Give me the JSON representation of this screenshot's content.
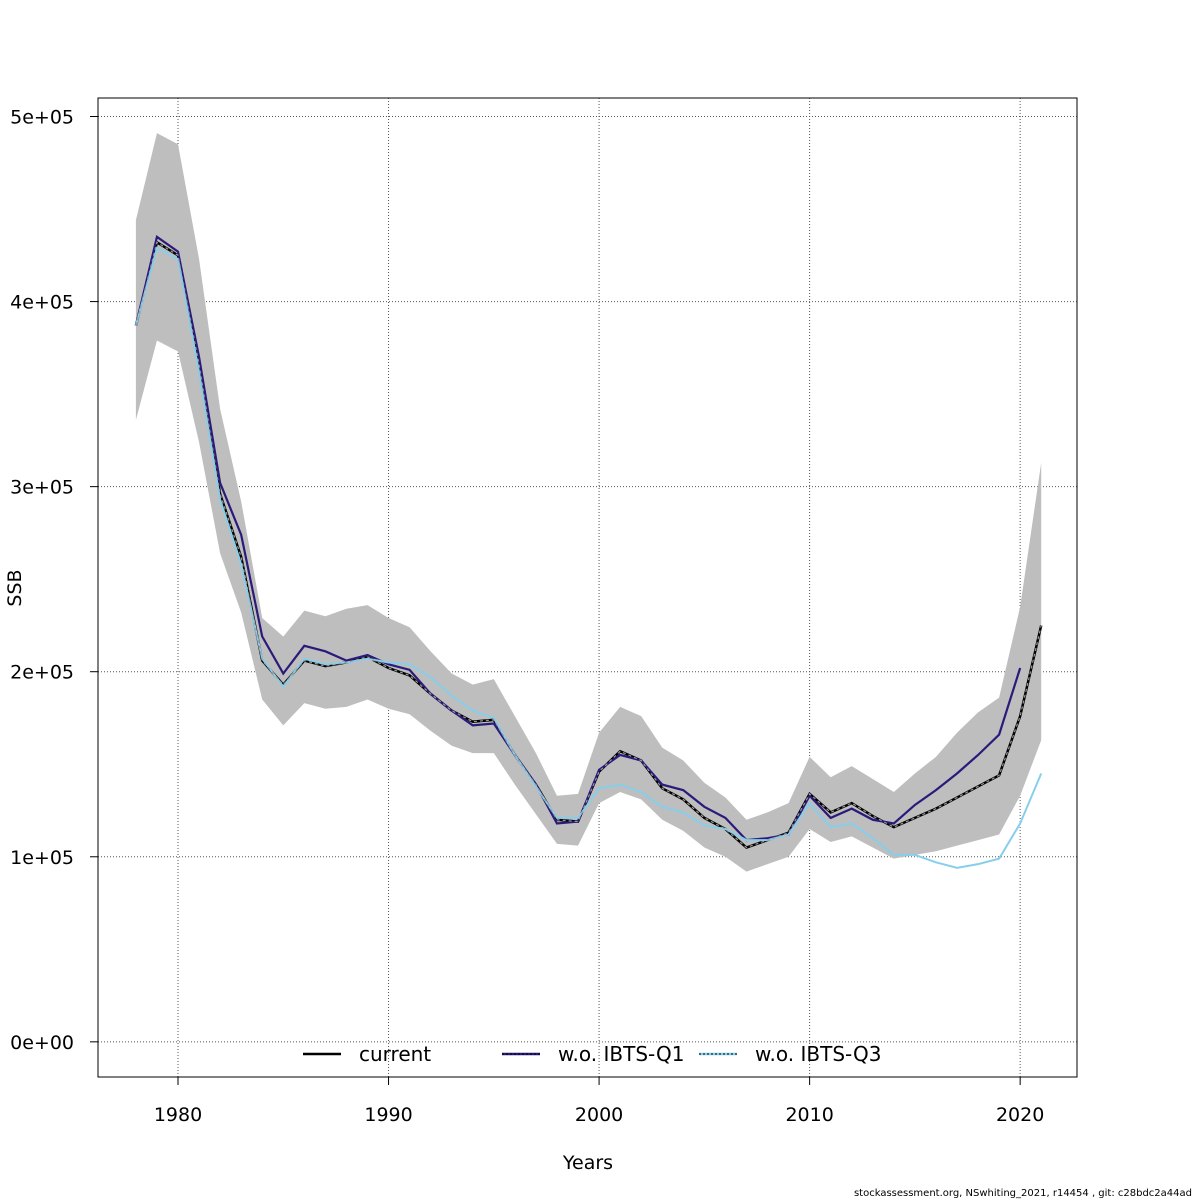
{
  "chart_data": {
    "type": "line",
    "title": "",
    "xlabel": "Years",
    "ylabel": "SSB",
    "xlim": [
      1976.2,
      2022.7
    ],
    "ylim": [
      -19000,
      510000
    ],
    "x_ticks": [
      1980,
      1990,
      2000,
      2010,
      2020
    ],
    "x_tick_labels": [
      "1980",
      "1990",
      "2000",
      "2010",
      "2020"
    ],
    "y_ticks": [
      0,
      100000,
      200000,
      300000,
      400000,
      500000
    ],
    "y_tick_labels": [
      "0e+00",
      "1e+05",
      "2e+05",
      "3e+05",
      "4e+05",
      "5e+05"
    ],
    "grid": true,
    "legend_position": "bottom",
    "confidence_band": {
      "name": "current 95% CI",
      "color": "#bebebe",
      "x": [
        1978,
        1979,
        1980,
        1981,
        1982,
        1983,
        1984,
        1985,
        1986,
        1987,
        1988,
        1989,
        1990,
        1991,
        1992,
        1993,
        1994,
        1995,
        1996,
        1997,
        1998,
        1999,
        2000,
        2001,
        2002,
        2003,
        2004,
        2005,
        2006,
        2007,
        2008,
        2009,
        2010,
        2011,
        2012,
        2013,
        2014,
        2015,
        2016,
        2017,
        2018,
        2019,
        2020,
        2021
      ],
      "lower": [
        336000,
        379000,
        373000,
        324000,
        264000,
        232000,
        185000,
        171000,
        183000,
        180000,
        181000,
        185000,
        180000,
        177000,
        168000,
        160000,
        156000,
        156000,
        139000,
        123000,
        107000,
        106000,
        129000,
        135000,
        131000,
        120000,
        114000,
        105000,
        100000,
        92000,
        96000,
        100000,
        115000,
        108000,
        111000,
        105000,
        99000,
        101000,
        103000,
        106000,
        109000,
        112000,
        133000,
        163000
      ],
      "upper": [
        444000,
        491000,
        485000,
        423000,
        342000,
        292000,
        229000,
        219000,
        233000,
        230000,
        234000,
        236000,
        229000,
        224000,
        211000,
        199000,
        193000,
        196000,
        176000,
        156000,
        133000,
        134000,
        167000,
        181000,
        176000,
        159000,
        152000,
        140000,
        132000,
        120000,
        124000,
        129000,
        154000,
        143000,
        149000,
        142000,
        135000,
        145000,
        154000,
        167000,
        178000,
        186000,
        235000,
        313000
      ]
    },
    "series": [
      {
        "name": "current",
        "color": "#000000",
        "dash": "3,3",
        "x": [
          1978,
          1979,
          1980,
          1981,
          1982,
          1983,
          1984,
          1985,
          1986,
          1987,
          1988,
          1989,
          1990,
          1991,
          1992,
          1993,
          1994,
          1995,
          1996,
          1997,
          1998,
          1999,
          2000,
          2001,
          2002,
          2003,
          2004,
          2005,
          2006,
          2007,
          2008,
          2009,
          2010,
          2011,
          2012,
          2013,
          2014,
          2015,
          2016,
          2017,
          2018,
          2019,
          2020,
          2021
        ],
        "values": [
          387000,
          432000,
          425000,
          366000,
          296000,
          262000,
          206000,
          193000,
          206000,
          203000,
          205000,
          208000,
          202000,
          198000,
          188000,
          179000,
          173000,
          174000,
          155000,
          139000,
          120000,
          119000,
          146000,
          157000,
          152000,
          137000,
          131000,
          121000,
          115000,
          105000,
          109000,
          113000,
          134000,
          124000,
          129000,
          122000,
          116000,
          121000,
          126000,
          132000,
          138000,
          144000,
          176000,
          225000
        ]
      },
      {
        "name": "w.o. IBTS-Q1",
        "color": "#2b1a7b",
        "dash": "",
        "x": [
          1978,
          1979,
          1980,
          1981,
          1982,
          1983,
          1984,
          1985,
          1986,
          1987,
          1988,
          1989,
          1990,
          1991,
          1992,
          1993,
          1994,
          1995,
          1996,
          1997,
          1998,
          1999,
          2000,
          2001,
          2002,
          2003,
          2004,
          2005,
          2006,
          2007,
          2008,
          2009,
          2010,
          2011,
          2012,
          2013,
          2014,
          2015,
          2016,
          2017,
          2018,
          2019,
          2020
        ],
        "values": [
          387000,
          435000,
          427000,
          370000,
          302000,
          274000,
          219000,
          199000,
          214000,
          211000,
          206000,
          209000,
          204000,
          201000,
          188000,
          179000,
          171000,
          172000,
          155000,
          139000,
          118000,
          119000,
          147000,
          155000,
          152000,
          139000,
          136000,
          127000,
          121000,
          109000,
          110000,
          112000,
          133000,
          121000,
          126000,
          120000,
          118000,
          128000,
          136000,
          145000,
          155000,
          166000,
          202000
        ]
      },
      {
        "name": "w.o. IBTS-Q3",
        "color": "#87ceeb",
        "dash": "",
        "x": [
          1978,
          1979,
          1980,
          1981,
          1982,
          1983,
          1984,
          1985,
          1986,
          1987,
          1988,
          1989,
          1990,
          1991,
          1992,
          1993,
          1994,
          1995,
          1996,
          1997,
          1998,
          1999,
          2000,
          2001,
          2002,
          2003,
          2004,
          2005,
          2006,
          2007,
          2008,
          2009,
          2010,
          2011,
          2012,
          2013,
          2014,
          2015,
          2016,
          2017,
          2018,
          2019,
          2020,
          2021
        ],
        "values": [
          387000,
          429000,
          423000,
          362000,
          293000,
          258000,
          207000,
          192000,
          207000,
          204000,
          205000,
          207000,
          205000,
          204000,
          197000,
          187000,
          179000,
          175000,
          155000,
          138000,
          121000,
          121000,
          137000,
          139000,
          135000,
          127000,
          124000,
          117000,
          115000,
          109000,
          109000,
          112000,
          129000,
          116000,
          118000,
          110000,
          101000,
          101000,
          97000,
          94000,
          96000,
          99000,
          118000,
          145000
        ]
      }
    ]
  },
  "footer": {
    "text": "stockassessment.org, NSwhiting_2021, r14454 , git: c28bdc2a44ad"
  }
}
